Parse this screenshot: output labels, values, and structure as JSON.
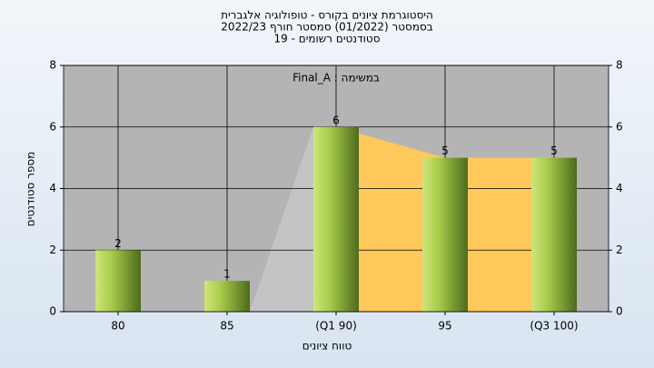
{
  "chart_data": {
    "type": "bar",
    "title": "היסטוגרמת ציונים בקורס - טופולוגיה אלגברית",
    "subtitle": [
      "בסמסטר  (01/2022)  סמסטר חורף 2022/23",
      "סטודנטים רשומים - 19"
    ],
    "annotation": "Final_A : במשימה",
    "x_label": "טווח ציונים",
    "y_label": "מספר סטודנטים",
    "categories": [
      "80",
      "85",
      "(Q1 90)",
      "95",
      "(Q3 100)"
    ],
    "values": [
      2,
      1,
      6,
      5,
      5
    ],
    "ylim": [
      0,
      8
    ],
    "yticks": [
      0,
      2,
      4,
      6,
      8
    ],
    "grid": true
  }
}
